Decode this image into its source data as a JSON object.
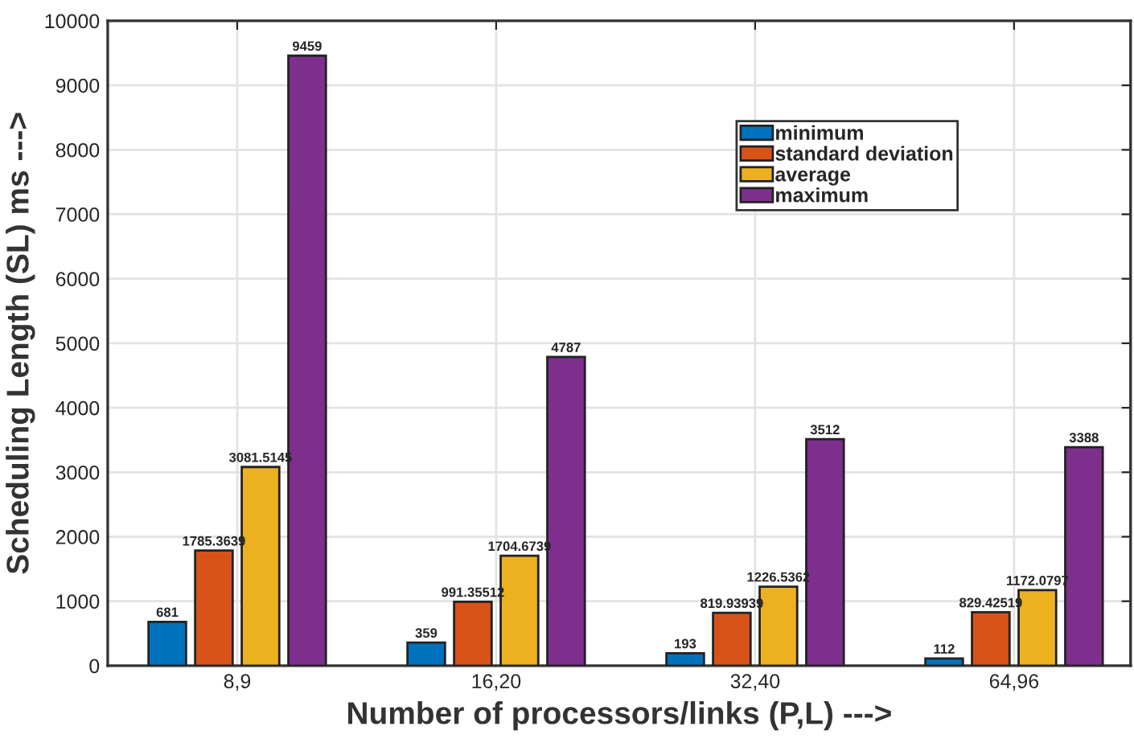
{
  "chart_data": {
    "type": "bar",
    "xlabel": "Number of processors/links (P,L) --->",
    "ylabel": "Scheduling Length (SL) ms --->",
    "categories": [
      "8,9",
      "16,20",
      "32,40",
      "64,96"
    ],
    "series": [
      {
        "name": "minimum",
        "color": "#0072bd",
        "values": [
          681,
          359,
          193,
          112
        ]
      },
      {
        "name": "standard deviation",
        "color": "#d95319",
        "values": [
          1785.3639,
          991.35512,
          819.93939,
          829.42519
        ]
      },
      {
        "name": "average",
        "color": "#edb120",
        "values": [
          3081.5145,
          1704.6739,
          1226.5362,
          1172.0797
        ]
      },
      {
        "name": "maximum",
        "color": "#7e2f8e",
        "values": [
          9459,
          4787,
          3512,
          3388
        ]
      }
    ],
    "ylim": [
      0,
      10000
    ],
    "yticks": [
      0,
      1000,
      2000,
      3000,
      4000,
      5000,
      6000,
      7000,
      8000,
      9000,
      10000
    ],
    "grid": true,
    "legend": "top right",
    "data_labels": true
  }
}
